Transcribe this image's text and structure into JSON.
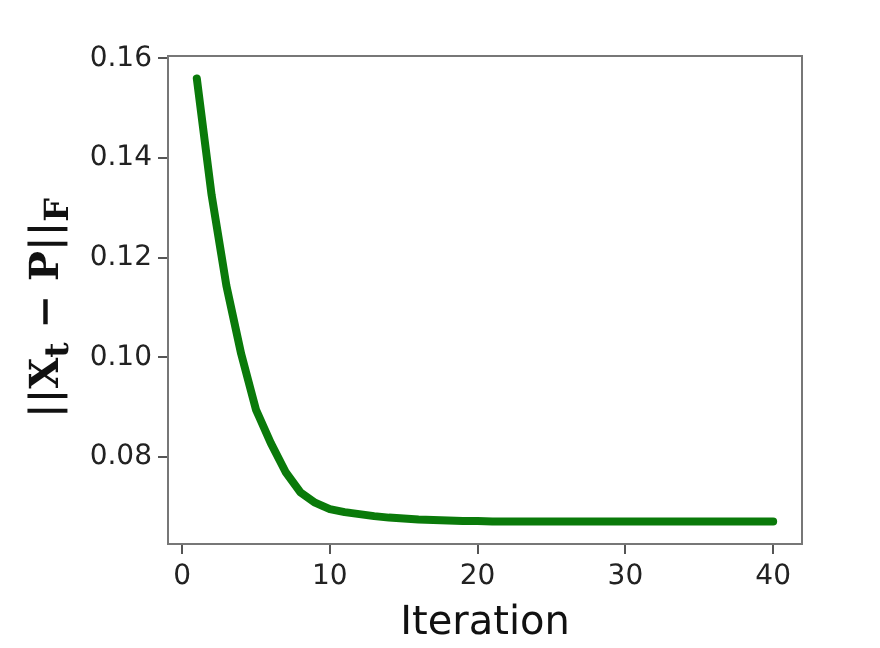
{
  "chart_data": {
    "type": "line",
    "xlabel": "Iteration",
    "ylabel": "||X$_{t}$ − P||$_{F}$",
    "x": [
      1,
      2,
      3,
      4,
      5,
      6,
      7,
      8,
      9,
      10,
      11,
      12,
      13,
      14,
      15,
      16,
      17,
      18,
      19,
      20,
      21,
      22,
      23,
      24,
      25,
      26,
      27,
      28,
      29,
      30,
      31,
      32,
      33,
      34,
      35,
      36,
      37,
      38,
      39,
      40
    ],
    "series": [
      {
        "color": "#0a7a0a",
        "values": [
          0.156,
          0.1326,
          0.1144,
          0.1007,
          0.0895,
          0.0828,
          0.077,
          0.0729,
          0.0708,
          0.0695,
          0.0689,
          0.0685,
          0.0681,
          0.0678,
          0.0676,
          0.0674,
          0.0673,
          0.0672,
          0.0671,
          0.0671,
          0.067,
          0.067,
          0.067,
          0.067,
          0.067,
          0.067,
          0.067,
          0.067,
          0.067,
          0.067,
          0.067,
          0.067,
          0.067,
          0.067,
          0.067,
          0.067,
          0.067,
          0.067,
          0.067,
          0.067
        ]
      }
    ],
    "xlim": [
      -0.95,
      41.95
    ],
    "xticks": [
      0,
      10,
      20,
      30,
      40
    ],
    "ylim": [
      0.0625,
      0.1605
    ],
    "yticks": [
      {
        "value": 0.08,
        "label": "0.08"
      },
      {
        "value": 0.1,
        "label": "0.10"
      },
      {
        "value": 0.12,
        "label": "0.12"
      },
      {
        "value": 0.14,
        "label": "0.14"
      },
      {
        "value": 0.16,
        "label": "0.16"
      }
    ],
    "grid": false,
    "legend": false,
    "marker": "none",
    "line_style": "solid"
  }
}
